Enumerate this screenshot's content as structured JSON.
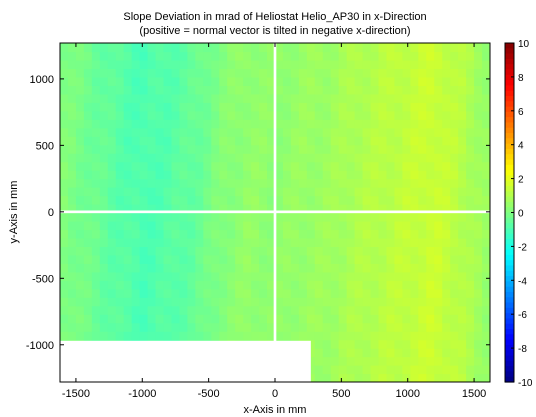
{
  "chart_data": {
    "type": "heatmap",
    "title_lines": [
      "Slope Deviation in mrad of Heliostat Helio_AP30 in x-Direction",
      "(positive = normal vector is tilted in negative x-direction)"
    ],
    "xlabel": "x-Axis in mm",
    "ylabel": "y-Axis in mm",
    "xlim": [
      -1620,
      1620
    ],
    "ylim": [
      -1280,
      1270
    ],
    "x_ticks": [
      -1500,
      -1000,
      -500,
      0,
      500,
      1000,
      1500
    ],
    "y_ticks": [
      -1000,
      -500,
      0,
      500,
      1000
    ],
    "x_tick_labels": [
      "-1500",
      "-1000",
      "-500",
      "0",
      "500",
      "1000",
      "1500"
    ],
    "y_tick_labels": [
      "-1000",
      "-500",
      "0",
      "500",
      "1000"
    ],
    "colorbar": {
      "range": [
        -10,
        10
      ],
      "colormap": "jet",
      "ticks": [
        -10,
        -8,
        -6,
        -4,
        -2,
        0,
        2,
        4,
        6,
        8,
        10
      ],
      "tick_labels": [
        "-10",
        "-8",
        "-6",
        "-4",
        "-2",
        "0",
        "2",
        "4",
        "6",
        "8",
        "10"
      ]
    },
    "mirror_field": {
      "x_extent": [
        -1620,
        1620
      ],
      "y_extent": [
        -1280,
        1270
      ],
      "gaps": [
        {
          "orientation": "vertical",
          "x_center": 0,
          "width": 20
        },
        {
          "orientation": "horizontal",
          "y_center": 0,
          "width": 20
        }
      ],
      "missing_region": {
        "x": [
          -1620,
          270
        ],
        "y": [
          -1280,
          -970
        ]
      }
    },
    "x_profile": {
      "x": [
        -1620,
        -1400,
        -1200,
        -1000,
        -800,
        -600,
        -400,
        -200,
        0,
        200,
        400,
        600,
        800,
        1000,
        1200,
        1400,
        1620
      ],
      "values": [
        0.1,
        -0.3,
        -0.7,
        -1.0,
        -0.8,
        -0.5,
        0.1,
        0.4,
        0.3,
        0.5,
        0.6,
        0.9,
        1.1,
        1.3,
        1.5,
        1.1,
        0.4
      ]
    }
  }
}
